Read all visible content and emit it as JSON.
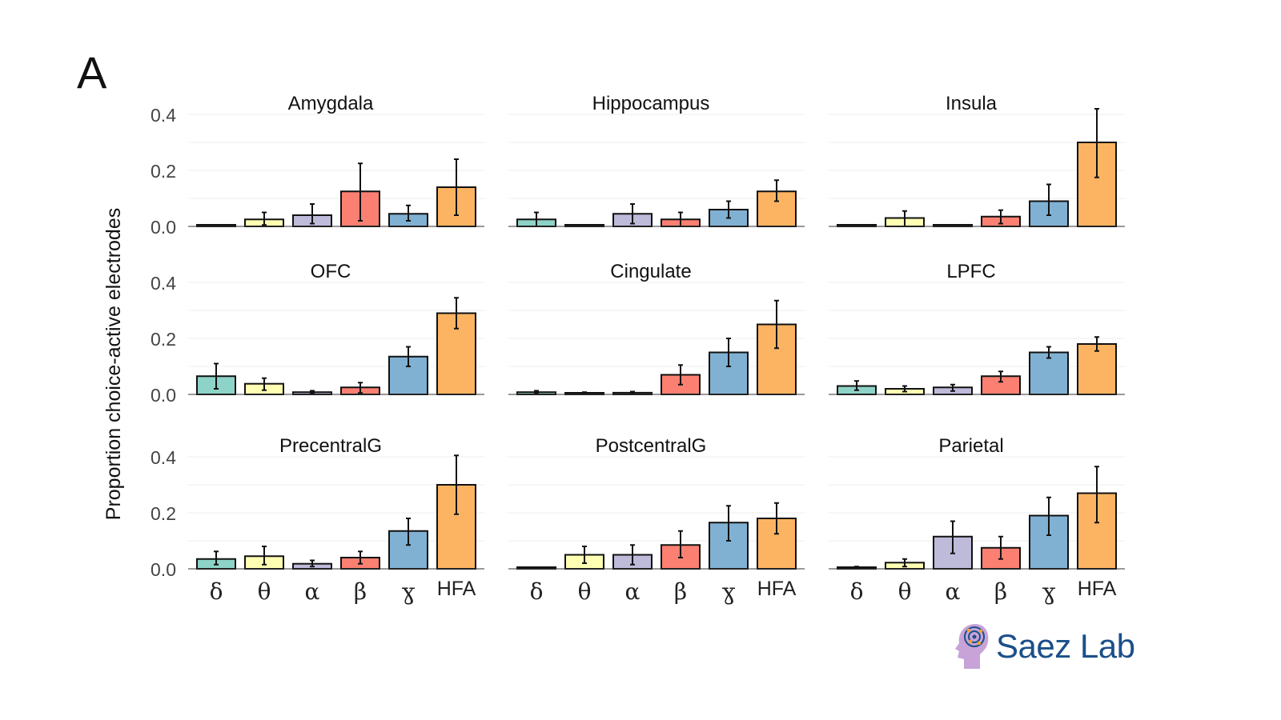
{
  "panel_label": "A",
  "logo_text": "Saez Lab",
  "chart_data": {
    "type": "bar",
    "ylabel": "Proportion choice-active electrodes",
    "xlabel": "",
    "ylim": [
      0,
      0.42
    ],
    "yticks": [
      0.0,
      0.2,
      0.4
    ],
    "yticklabels": [
      "0.0",
      "0.2",
      "0.4"
    ],
    "grid": true,
    "categories": [
      "δ",
      "θ",
      "α",
      "β",
      "ɣ",
      "HFA"
    ],
    "colors": [
      "#8dd3c7",
      "#ffffb3",
      "#bebada",
      "#fb8072",
      "#80b1d3",
      "#fdb462"
    ],
    "facets": [
      {
        "title": "Amygdala",
        "values": [
          0.0,
          0.025,
          0.04,
          0.125,
          0.045,
          0.14
        ],
        "err_low": [
          0.0,
          0.005,
          0.01,
          0.02,
          0.02,
          0.04
        ],
        "err_high": [
          0.0,
          0.05,
          0.08,
          0.225,
          0.075,
          0.24
        ]
      },
      {
        "title": "Hippocampus",
        "values": [
          0.025,
          0.0,
          0.045,
          0.025,
          0.06,
          0.125
        ],
        "err_low": [
          0.0,
          0.0,
          0.01,
          0.0,
          0.03,
          0.09
        ],
        "err_high": [
          0.05,
          0.0,
          0.08,
          0.05,
          0.09,
          0.165
        ]
      },
      {
        "title": "Insula",
        "values": [
          0.0,
          0.03,
          0.0,
          0.035,
          0.09,
          0.3
        ],
        "err_low": [
          0.0,
          0.0,
          0.0,
          0.01,
          0.04,
          0.175
        ],
        "err_high": [
          0.0,
          0.055,
          0.0,
          0.058,
          0.15,
          0.42
        ]
      },
      {
        "title": "OFC",
        "values": [
          0.065,
          0.038,
          0.008,
          0.025,
          0.135,
          0.29
        ],
        "err_low": [
          0.02,
          0.015,
          0.003,
          0.005,
          0.1,
          0.235
        ],
        "err_high": [
          0.11,
          0.058,
          0.013,
          0.042,
          0.17,
          0.345
        ]
      },
      {
        "title": "Cingulate",
        "values": [
          0.008,
          0.005,
          0.006,
          0.07,
          0.15,
          0.25
        ],
        "err_low": [
          0.003,
          0.002,
          0.002,
          0.035,
          0.1,
          0.165
        ],
        "err_high": [
          0.013,
          0.008,
          0.01,
          0.105,
          0.2,
          0.335
        ]
      },
      {
        "title": "LPFC",
        "values": [
          0.03,
          0.02,
          0.025,
          0.065,
          0.15,
          0.18
        ],
        "err_low": [
          0.015,
          0.01,
          0.012,
          0.045,
          0.13,
          0.155
        ],
        "err_high": [
          0.048,
          0.03,
          0.035,
          0.082,
          0.17,
          0.205
        ]
      },
      {
        "title": "PrecentralG",
        "values": [
          0.035,
          0.045,
          0.018,
          0.04,
          0.135,
          0.3
        ],
        "err_low": [
          0.015,
          0.015,
          0.008,
          0.018,
          0.085,
          0.195
        ],
        "err_high": [
          0.062,
          0.08,
          0.03,
          0.062,
          0.18,
          0.405
        ]
      },
      {
        "title": "PostcentralG",
        "values": [
          0.0,
          0.05,
          0.05,
          0.085,
          0.165,
          0.18
        ],
        "err_low": [
          0.0,
          0.02,
          0.015,
          0.04,
          0.1,
          0.125
        ],
        "err_high": [
          0.0,
          0.08,
          0.085,
          0.135,
          0.225,
          0.235
        ]
      },
      {
        "title": "Parietal",
        "values": [
          0.005,
          0.022,
          0.115,
          0.075,
          0.19,
          0.27
        ],
        "err_low": [
          0.002,
          0.008,
          0.055,
          0.035,
          0.12,
          0.165
        ],
        "err_high": [
          0.008,
          0.035,
          0.17,
          0.115,
          0.255,
          0.365
        ]
      }
    ]
  }
}
